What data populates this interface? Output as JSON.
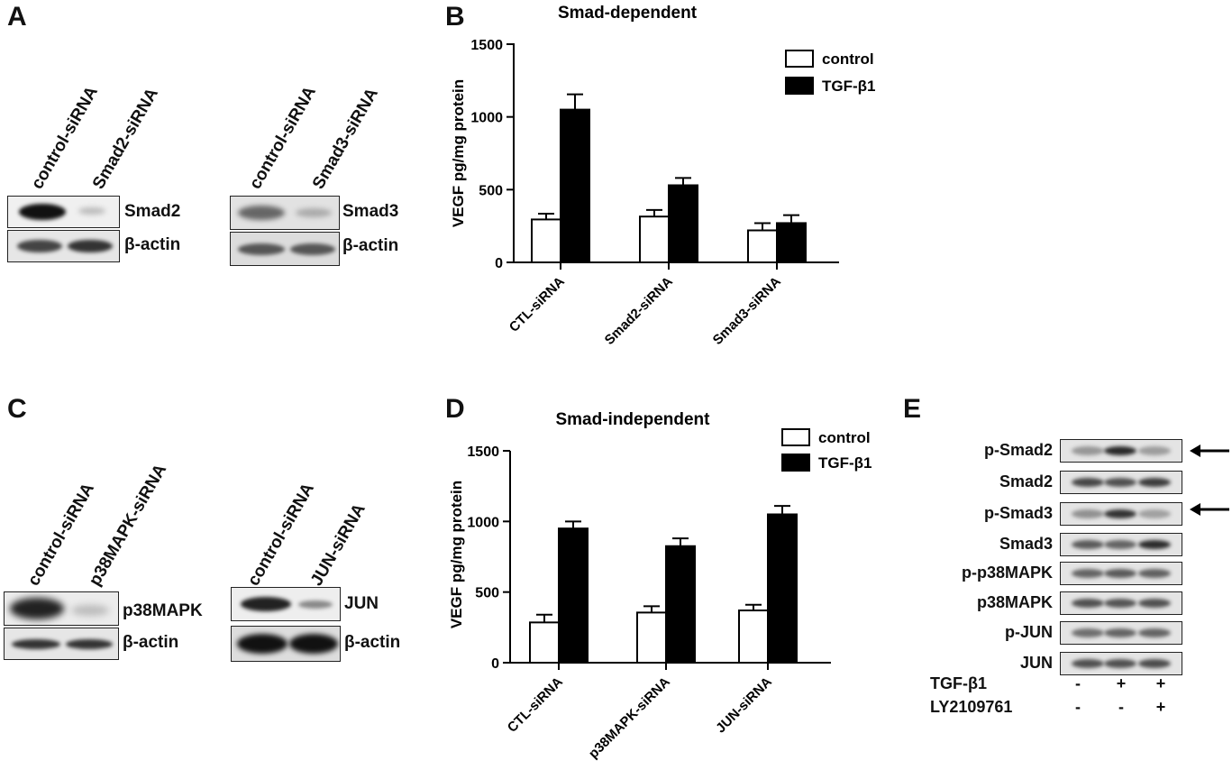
{
  "panels": {
    "A": {
      "letter": "A",
      "blot_left": {
        "lanes": [
          "control-siRNA",
          "Smad2-siRNA"
        ],
        "target": "Smad2",
        "loading": "β-actin"
      },
      "blot_right": {
        "lanes": [
          "control-siRNA",
          "Smad3-siRNA"
        ],
        "target": "Smad3",
        "loading": "β-actin"
      }
    },
    "C": {
      "letter": "C",
      "blot_left": {
        "lanes": [
          "control-siRNA",
          "p38MAPK-siRNA"
        ],
        "target": "p38MAPK",
        "loading": "β-actin"
      },
      "blot_right": {
        "lanes": [
          "control-siRNA",
          "JUN-siRNA"
        ],
        "target": "JUN",
        "loading": "β-actin"
      }
    },
    "B": {
      "letter": "B"
    },
    "D": {
      "letter": "D"
    },
    "E": {
      "letter": "E",
      "rows": [
        "p-Smad2",
        "Smad2",
        "p-Smad3",
        "Smad3",
        "p-p38MAPK",
        "p38MAPK",
        "p-JUN",
        "JUN"
      ],
      "treatments": [
        {
          "name": "TGF-β1",
          "signs": [
            "-",
            "+",
            "+"
          ]
        },
        {
          "name": "LY2109761",
          "signs": [
            "-",
            "-",
            "+"
          ]
        }
      ]
    }
  },
  "chart_data": [
    {
      "type": "bar",
      "title": "Smad-dependent",
      "ylabel": "VEGF pg/mg protein",
      "ylim": [
        0,
        1500
      ],
      "yticks": [
        "0",
        "500",
        "1000",
        "1500"
      ],
      "categories": [
        "CTL-siRNA",
        "Smad2-siRNA",
        "Smad3-siRNA"
      ],
      "series": [
        {
          "name": "control",
          "values": [
            295,
            315,
            220
          ],
          "errors": [
            40,
            45,
            50
          ],
          "color": "#ffffff"
        },
        {
          "name": "TGF-β1",
          "values": [
            1050,
            530,
            270
          ],
          "errors": [
            105,
            50,
            55
          ],
          "color": "#000000"
        }
      ],
      "legend": "top-right"
    },
    {
      "type": "bar",
      "title": "Smad-independent",
      "ylabel": "VEGF pg/mg protein",
      "ylim": [
        0,
        1500
      ],
      "yticks": [
        "0",
        "500",
        "1000",
        "1500"
      ],
      "categories": [
        "CTL-siRNA",
        "p38MAPK-siRNA",
        "JUN-siRNA"
      ],
      "series": [
        {
          "name": "control",
          "values": [
            285,
            355,
            370
          ],
          "errors": [
            55,
            45,
            40
          ],
          "color": "#ffffff"
        },
        {
          "name": "TGF-β1",
          "values": [
            950,
            825,
            1050
          ],
          "errors": [
            50,
            55,
            60
          ],
          "color": "#000000"
        }
      ],
      "legend": "top-right"
    }
  ]
}
